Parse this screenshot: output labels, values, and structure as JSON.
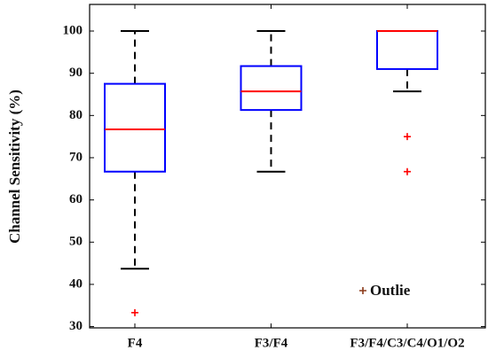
{
  "chart_data": {
    "type": "box",
    "y_label": "Channel Sensitivity (%)",
    "categories": [
      "F4",
      "F3/F4",
      "F3/F4/C3/C4/O1/O2"
    ],
    "boxes": [
      {
        "min": 43.7,
        "q1": 66.7,
        "median": 76.7,
        "q3": 87.5,
        "max": 100,
        "outliers": [
          33.3
        ]
      },
      {
        "min": 66.7,
        "q1": 81.3,
        "median": 85.7,
        "q3": 91.7,
        "max": 100,
        "outliers": []
      },
      {
        "min": 85.7,
        "q1": 91,
        "median": 100,
        "q3": 100,
        "max": 100,
        "outliers": [
          75,
          66.7
        ]
      }
    ],
    "ylim": [
      29.7,
      106.3
    ],
    "yticks": [
      30,
      40,
      50,
      60,
      70,
      80,
      90,
      100
    ],
    "box_color": "#0000ff",
    "median_color": "#ff0000",
    "whisker_color": "#000000",
    "outlier_color": "#ff0000",
    "legend": {
      "position": "lower right",
      "label": "Outlie",
      "color": "#8b3a1a"
    }
  }
}
